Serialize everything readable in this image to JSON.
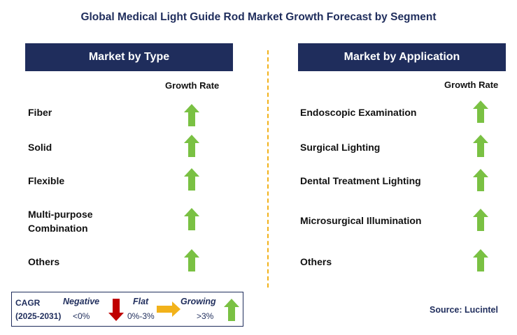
{
  "title": "Global Medical Light Guide Rod Market Growth Forecast by Segment",
  "left_panel": {
    "header": "Market by Type",
    "growth_rate_label": "Growth Rate",
    "rows": [
      {
        "label": "Fiber",
        "trend": "growing"
      },
      {
        "label": "Solid",
        "trend": "growing"
      },
      {
        "label": "Flexible",
        "trend": "growing"
      },
      {
        "label": "Multi-purpose\nCombination",
        "trend": "growing"
      },
      {
        "label": "Others",
        "trend": "growing"
      }
    ]
  },
  "right_panel": {
    "header": "Market by Application",
    "growth_rate_label": "Growth Rate",
    "rows": [
      {
        "label": "Endoscopic Examination",
        "trend": "growing"
      },
      {
        "label": "Surgical Lighting",
        "trend": "growing"
      },
      {
        "label": "Dental Treatment Lighting",
        "trend": "growing"
      },
      {
        "label": "Microsurgical Illumination",
        "trend": "growing"
      },
      {
        "label": "Others",
        "trend": "growing"
      }
    ]
  },
  "legend": {
    "cagr_label": "CAGR",
    "period": "(2025-2031)",
    "negative_label": "Negative",
    "negative_value": "<0%",
    "flat_label": "Flat",
    "flat_value": "0%-3%",
    "growing_label": "Growing",
    "growing_value": ">3%"
  },
  "source": "Source: Lucintel",
  "colors": {
    "header_bg": "#1f2d5c",
    "up_arrow": "#7ac143",
    "down_arrow": "#c00000",
    "flat_arrow": "#f2b21a",
    "divider": "#f2b21a"
  },
  "icons": {
    "up": "arrow-up-icon",
    "down": "arrow-down-icon",
    "flat": "arrow-right-icon"
  }
}
